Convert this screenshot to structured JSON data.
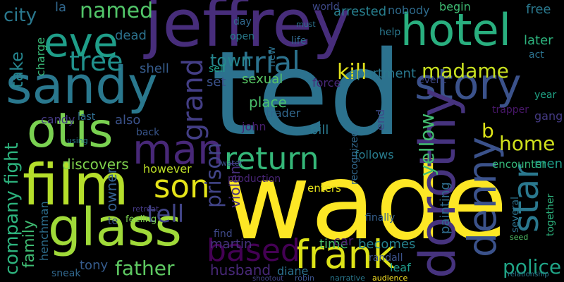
{
  "words": [
    "ted",
    "wade",
    "jeffrey",
    "sandy",
    "otis",
    "man",
    "film",
    "glass",
    "eve",
    "hotel",
    "story",
    "dorothy",
    "denny",
    "star",
    "frank",
    "return",
    "trial",
    "tree",
    "named",
    "madame",
    "son",
    "tell",
    "based",
    "father",
    "police",
    "home",
    "kill",
    "grand",
    "prison",
    "town",
    "city",
    "take",
    "company fight",
    "yellow",
    "discovers",
    "apartment",
    "la",
    "dead",
    "also",
    "shell",
    "candy",
    "last",
    "back",
    "however",
    "owner",
    "tony",
    "family",
    "henchman",
    "charge",
    "sexual",
    "place",
    "set",
    "sell",
    "john",
    "bill",
    "trader",
    "violent",
    "follows",
    "end",
    "recognized",
    "painting",
    "production",
    "enters",
    "martin",
    "husband",
    "find",
    "diane",
    "time",
    "car",
    "becomes",
    "randall",
    "leaf",
    "finally",
    "event",
    "force",
    "arrested",
    "world",
    "nobody",
    "begin",
    "free",
    "later",
    "act",
    "gang",
    "b",
    "year",
    "encounter",
    "men",
    "together",
    "trapper",
    "new",
    "open",
    "day",
    "help",
    "life",
    "must",
    "sneak",
    "feeling",
    "te",
    "relationship",
    "audience",
    "narrative",
    "robin",
    "shootout",
    "using",
    "retreat",
    "water",
    "several",
    "seed"
  ]
}
